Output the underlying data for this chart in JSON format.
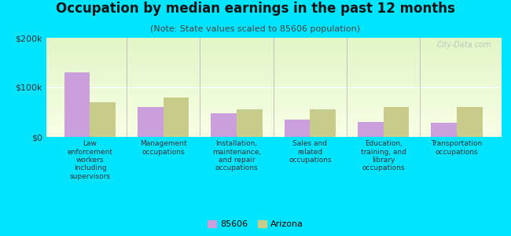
{
  "title": "Occupation by median earnings in the past 12 months",
  "subtitle": "(Note: State values scaled to 85606 population)",
  "categories": [
    "Law\nenforcement\nworkers\nincluding\nsupervisors",
    "Management\noccupations",
    "Installation,\nmaintenance,\nand repair\noccupations",
    "Sales and\nrelated\noccupations",
    "Education,\ntraining, and\nlibrary\noccupations",
    "Transportation\noccupations"
  ],
  "values_85606": [
    130000,
    60000,
    47000,
    35000,
    30000,
    28000
  ],
  "values_arizona": [
    70000,
    80000,
    55000,
    55000,
    60000,
    60000
  ],
  "ylim": [
    0,
    200000
  ],
  "ytick_labels": [
    "$0",
    "$100k",
    "$200k"
  ],
  "color_85606": "#c9a0dc",
  "color_arizona": "#c8cc8a",
  "background_outer": "#00e5ff",
  "watermark": "City-Data.com",
  "legend_label_85606": "85606",
  "legend_label_arizona": "Arizona",
  "bar_width": 0.35,
  "title_fontsize": 12,
  "subtitle_fontsize": 8,
  "tick_label_fontsize": 6.5,
  "ytick_fontsize": 8,
  "legend_fontsize": 8
}
